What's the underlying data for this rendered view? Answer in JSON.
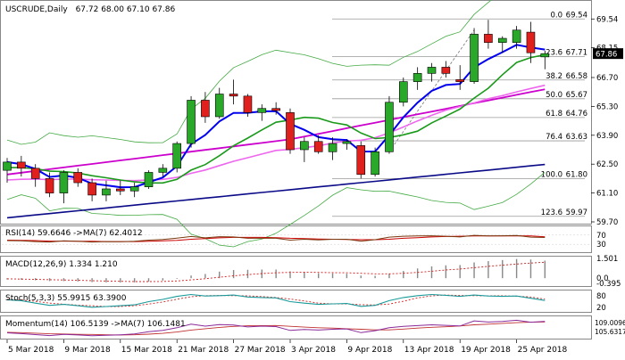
{
  "header": {
    "symbol": "USCRUDE,Daily",
    "ohlc": "67.72 68.00 67.10 67.86"
  },
  "colors": {
    "bull": "#2aa82a",
    "bear": "#e0201c",
    "sma_blue": "#0000ee",
    "sma_green": "#1a9a1a",
    "sma_pink": "#ee66ee",
    "sma_magenta": "#cc00cc",
    "sma_navy": "#0a0a88",
    "bb": "#44aa44",
    "last_price_box": "#000000"
  },
  "chart_data": [
    {
      "type": "candlestick",
      "title": "USCRUDE,Daily 67.72 68.00 67.10 67.86",
      "ylim": [
        59.7,
        70.2
      ],
      "y_ticks": [
        "69.54",
        "68.15",
        "66.70",
        "65.30",
        "63.90",
        "62.50",
        "61.10",
        "59.70"
      ],
      "last_price": "67.86",
      "x_ticks": [
        "5 Mar 2018",
        "9 Mar 2018",
        "15 Mar 2018",
        "21 Mar 2018",
        "27 Mar 2018",
        "3 Apr 2018",
        "9 Apr 2018",
        "13 Apr 2018",
        "19 Apr 2018",
        "25 Apr 2018"
      ],
      "fibonacci": [
        {
          "level": "0.0",
          "price": "69.54",
          "value": 69.54
        },
        {
          "level": "23.6",
          "price": "67.71",
          "value": 67.71
        },
        {
          "level": "38.2",
          "price": "66.58",
          "value": 66.58
        },
        {
          "level": "50.0",
          "price": "65.67",
          "value": 65.67
        },
        {
          "level": "61.8",
          "price": "64.76",
          "value": 64.76
        },
        {
          "level": "76.4",
          "price": "63.63",
          "value": 63.63
        },
        {
          "level": "100.0",
          "price": "61.80",
          "value": 61.8
        },
        {
          "level": "123.6",
          "price": "59.97",
          "value": 59.97
        }
      ],
      "candles": [
        {
          "o": 62.2,
          "h": 62.8,
          "l": 61.6,
          "c": 62.6
        },
        {
          "o": 62.6,
          "h": 62.9,
          "l": 61.9,
          "c": 62.3
        },
        {
          "o": 62.3,
          "h": 62.5,
          "l": 61.4,
          "c": 61.8
        },
        {
          "o": 61.8,
          "h": 62.1,
          "l": 60.9,
          "c": 61.1
        },
        {
          "o": 61.1,
          "h": 62.2,
          "l": 60.6,
          "c": 62.1
        },
        {
          "o": 62.1,
          "h": 62.3,
          "l": 61.4,
          "c": 61.6
        },
        {
          "o": 61.6,
          "h": 61.8,
          "l": 60.7,
          "c": 61.0
        },
        {
          "o": 61.0,
          "h": 61.7,
          "l": 60.7,
          "c": 61.3
        },
        {
          "o": 61.3,
          "h": 61.7,
          "l": 61.0,
          "c": 61.2
        },
        {
          "o": 61.2,
          "h": 61.6,
          "l": 60.9,
          "c": 61.4
        },
        {
          "o": 61.4,
          "h": 62.2,
          "l": 61.3,
          "c": 62.1
        },
        {
          "o": 62.1,
          "h": 62.5,
          "l": 61.9,
          "c": 62.3
        },
        {
          "o": 62.3,
          "h": 63.6,
          "l": 62.1,
          "c": 63.5
        },
        {
          "o": 63.5,
          "h": 65.8,
          "l": 63.3,
          "c": 65.6
        },
        {
          "o": 65.6,
          "h": 66.0,
          "l": 64.5,
          "c": 64.8
        },
        {
          "o": 64.8,
          "h": 66.2,
          "l": 64.7,
          "c": 65.9
        },
        {
          "o": 65.9,
          "h": 66.6,
          "l": 65.4,
          "c": 65.8
        },
        {
          "o": 65.8,
          "h": 65.9,
          "l": 64.8,
          "c": 65.0
        },
        {
          "o": 65.0,
          "h": 65.4,
          "l": 64.6,
          "c": 65.2
        },
        {
          "o": 65.2,
          "h": 65.5,
          "l": 64.9,
          "c": 65.1
        },
        {
          "o": 65.0,
          "h": 65.2,
          "l": 63.0,
          "c": 63.2
        },
        {
          "o": 63.2,
          "h": 63.8,
          "l": 62.6,
          "c": 63.6
        },
        {
          "o": 63.6,
          "h": 63.9,
          "l": 63.0,
          "c": 63.1
        },
        {
          "o": 63.1,
          "h": 63.8,
          "l": 62.7,
          "c": 63.5
        },
        {
          "o": 63.5,
          "h": 63.7,
          "l": 63.2,
          "c": 63.6
        },
        {
          "o": 63.4,
          "h": 63.6,
          "l": 61.8,
          "c": 62.0
        },
        {
          "o": 62.0,
          "h": 63.3,
          "l": 61.9,
          "c": 63.1
        },
        {
          "o": 63.1,
          "h": 65.8,
          "l": 63.0,
          "c": 65.5
        },
        {
          "o": 65.5,
          "h": 66.7,
          "l": 65.3,
          "c": 66.5
        },
        {
          "o": 66.5,
          "h": 67.2,
          "l": 66.1,
          "c": 66.9
        },
        {
          "o": 66.9,
          "h": 67.4,
          "l": 66.5,
          "c": 67.2
        },
        {
          "o": 67.2,
          "h": 67.5,
          "l": 66.7,
          "c": 66.9
        },
        {
          "o": 66.6,
          "h": 67.3,
          "l": 66.1,
          "c": 66.5
        },
        {
          "o": 66.5,
          "h": 69.1,
          "l": 66.4,
          "c": 68.8
        },
        {
          "o": 68.8,
          "h": 69.5,
          "l": 68.1,
          "c": 68.4
        },
        {
          "o": 68.4,
          "h": 68.7,
          "l": 67.9,
          "c": 68.6
        },
        {
          "o": 68.4,
          "h": 69.2,
          "l": 68.1,
          "c": 69.0
        },
        {
          "o": 68.9,
          "h": 69.4,
          "l": 67.4,
          "c": 67.9
        },
        {
          "o": 67.7,
          "h": 68.0,
          "l": 67.1,
          "c": 67.86
        }
      ]
    },
    {
      "type": "line",
      "title": "RSI(14) 59.6646  ->MA(7) 62.4012",
      "y_ticks": [
        "70",
        "30"
      ],
      "series": [
        {
          "name": "RSI(14)",
          "values": [
            46,
            45,
            42,
            40,
            45,
            43,
            40,
            42,
            41,
            43,
            48,
            51,
            57,
            64,
            58,
            63,
            62,
            56,
            57,
            56,
            48,
            52,
            49,
            52,
            52,
            44,
            50,
            61,
            65,
            66,
            67,
            65,
            62,
            69,
            66,
            67,
            68,
            61,
            59.66
          ]
        },
        {
          "name": "MA(7)",
          "values": [
            48,
            47,
            46,
            44,
            44,
            43,
            43,
            42,
            42,
            42,
            43,
            45,
            47,
            52,
            55,
            58,
            60,
            60,
            60,
            59,
            56,
            55,
            53,
            52,
            51,
            50,
            50,
            52,
            56,
            59,
            62,
            64,
            65,
            66,
            66,
            66,
            67,
            66,
            62.4
          ]
        }
      ]
    },
    {
      "type": "bar",
      "title": "MACD(12,26,9) 1.334 1.210",
      "y_ticks": [
        "1.501",
        "0.0",
        "-0.395"
      ],
      "series": [
        {
          "name": "MACD(12,26,9)",
          "values": [
            -0.1,
            -0.12,
            -0.16,
            -0.22,
            -0.22,
            -0.25,
            -0.3,
            -0.32,
            -0.33,
            -0.32,
            -0.26,
            -0.18,
            -0.05,
            0.2,
            0.32,
            0.5,
            0.62,
            0.64,
            0.66,
            0.66,
            0.52,
            0.46,
            0.38,
            0.36,
            0.34,
            0.2,
            0.18,
            0.34,
            0.55,
            0.74,
            0.9,
            0.98,
            1.0,
            1.2,
            1.3,
            1.38,
            1.46,
            1.42,
            1.334
          ]
        },
        {
          "name": "Signal",
          "values": [
            -0.05,
            -0.07,
            -0.09,
            -0.12,
            -0.14,
            -0.16,
            -0.19,
            -0.22,
            -0.24,
            -0.26,
            -0.26,
            -0.25,
            -0.21,
            -0.13,
            -0.04,
            0.07,
            0.18,
            0.27,
            0.35,
            0.41,
            0.44,
            0.45,
            0.44,
            0.42,
            0.41,
            0.37,
            0.33,
            0.33,
            0.37,
            0.44,
            0.53,
            0.62,
            0.7,
            0.8,
            0.9,
            0.99,
            1.08,
            1.15,
            1.21
          ]
        }
      ]
    },
    {
      "type": "line",
      "title": "Stoch(5,3,3) 55.9915 63.3900",
      "y_ticks": [
        "80",
        "20"
      ],
      "series": [
        {
          "name": "%K",
          "values": [
            60,
            55,
            42,
            30,
            35,
            28,
            20,
            24,
            28,
            33,
            50,
            62,
            78,
            88,
            80,
            82,
            85,
            75,
            72,
            70,
            50,
            42,
            35,
            38,
            40,
            25,
            30,
            55,
            72,
            82,
            88,
            84,
            78,
            85,
            80,
            78,
            80,
            68,
            55.99
          ]
        },
        {
          "name": "%D",
          "values": [
            62,
            58,
            52,
            42,
            36,
            31,
            28,
            24,
            24,
            28,
            37,
            48,
            63,
            76,
            82,
            83,
            82,
            81,
            77,
            72,
            64,
            54,
            42,
            38,
            38,
            34,
            32,
            37,
            52,
            70,
            81,
            85,
            83,
            82,
            81,
            81,
            79,
            75,
            63.39
          ]
        }
      ]
    },
    {
      "type": "line",
      "title": "Momentum(14) 106.5139  ->MA(7) 106.1481",
      "y_ticks": [
        "109.0096",
        "105.6317"
      ],
      "series": [
        {
          "name": "Momentum(14)",
          "values": [
            99.5,
            99.0,
            98.4,
            97.8,
            98.6,
            98.2,
            97.7,
            98.0,
            98.3,
            98.8,
            100.2,
            101.0,
            102.6,
            104.8,
            103.6,
            104.6,
            104.3,
            103.1,
            103.6,
            103.3,
            101.0,
            101.5,
            101.2,
            101.7,
            101.9,
            99.6,
            100.8,
            102.6,
            103.5,
            103.9,
            104.4,
            104.1,
            103.7,
            106.8,
            106.1,
            106.4,
            107.2,
            106.0,
            106.51
          ]
        },
        {
          "name": "MA(7)",
          "values": [
            99.8,
            99.6,
            99.3,
            98.9,
            98.8,
            98.6,
            98.5,
            98.3,
            98.2,
            98.3,
            98.7,
            99.2,
            100.0,
            101.2,
            102.0,
            102.8,
            103.4,
            103.8,
            103.9,
            104.0,
            103.5,
            103.0,
            102.6,
            102.4,
            102.0,
            101.7,
            101.3,
            101.3,
            101.8,
            102.4,
            102.9,
            103.2,
            103.7,
            104.4,
            104.8,
            105.3,
            105.7,
            106.0,
            106.15
          ]
        }
      ]
    }
  ]
}
